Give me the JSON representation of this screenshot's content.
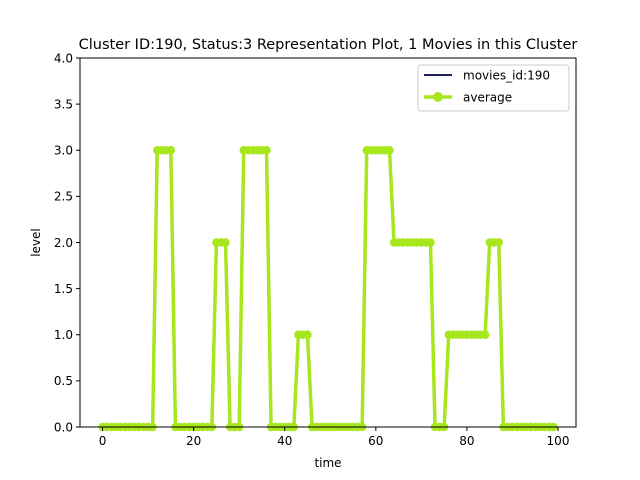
{
  "chart_data": {
    "type": "line",
    "title": "Cluster ID:190, Status:3 Representation Plot, 1 Movies in this Cluster",
    "xlabel": "time",
    "ylabel": "level",
    "xlim": [
      -4.95,
      103.95
    ],
    "ylim": [
      0,
      4.0
    ],
    "xticks": [
      0,
      20,
      40,
      60,
      80,
      100
    ],
    "xtick_labels": [
      "0",
      "20",
      "40",
      "60",
      "80",
      "100"
    ],
    "yticks": [
      0.0,
      0.5,
      1.0,
      1.5,
      2.0,
      2.5,
      3.0,
      3.5,
      4.0
    ],
    "ytick_labels": [
      "0.0",
      "0.5",
      "1.0",
      "1.5",
      "2.0",
      "2.5",
      "3.0",
      "3.5",
      "4.0"
    ],
    "grid": false,
    "legend_position": "top-right",
    "x": [
      0,
      1,
      2,
      3,
      4,
      5,
      6,
      7,
      8,
      9,
      10,
      11,
      12,
      13,
      14,
      15,
      16,
      17,
      18,
      19,
      20,
      21,
      22,
      23,
      24,
      25,
      26,
      27,
      28,
      29,
      30,
      31,
      32,
      33,
      34,
      35,
      36,
      37,
      38,
      39,
      40,
      41,
      42,
      43,
      44,
      45,
      46,
      47,
      48,
      49,
      50,
      51,
      52,
      53,
      54,
      55,
      56,
      57,
      58,
      59,
      60,
      61,
      62,
      63,
      64,
      65,
      66,
      67,
      68,
      69,
      70,
      71,
      72,
      73,
      74,
      75,
      76,
      77,
      78,
      79,
      80,
      81,
      82,
      83,
      84,
      85,
      86,
      87,
      88,
      89,
      90,
      91,
      92,
      93,
      94,
      95,
      96,
      97,
      98,
      99
    ],
    "series": [
      {
        "name": "movies_id:190",
        "color": "#1a1f5e",
        "style": "line",
        "values": [
          0,
          0,
          0,
          0,
          0,
          0,
          0,
          0,
          0,
          0,
          0,
          0,
          3,
          3,
          3,
          3,
          0,
          0,
          0,
          0,
          0,
          0,
          0,
          0,
          0,
          2,
          2,
          2,
          0,
          0,
          0,
          3,
          3,
          3,
          3,
          3,
          3,
          0,
          0,
          0,
          0,
          0,
          0,
          1,
          1,
          1,
          0,
          0,
          0,
          0,
          0,
          0,
          0,
          0,
          0,
          0,
          0,
          0,
          3,
          3,
          3,
          3,
          3,
          3,
          2,
          2,
          2,
          2,
          2,
          2,
          2,
          2,
          2,
          0,
          0,
          0,
          1,
          1,
          1,
          1,
          1,
          1,
          1,
          1,
          1,
          2,
          2,
          2,
          0,
          0,
          0,
          0,
          0,
          0,
          0,
          0,
          0,
          0,
          0,
          0
        ]
      },
      {
        "name": "average",
        "color": "#a8e61d",
        "style": "line-marker",
        "values": [
          0,
          0,
          0,
          0,
          0,
          0,
          0,
          0,
          0,
          0,
          0,
          0,
          3,
          3,
          3,
          3,
          0,
          0,
          0,
          0,
          0,
          0,
          0,
          0,
          0,
          2,
          2,
          2,
          0,
          0,
          0,
          3,
          3,
          3,
          3,
          3,
          3,
          0,
          0,
          0,
          0,
          0,
          0,
          1,
          1,
          1,
          0,
          0,
          0,
          0,
          0,
          0,
          0,
          0,
          0,
          0,
          0,
          0,
          3,
          3,
          3,
          3,
          3,
          3,
          2,
          2,
          2,
          2,
          2,
          2,
          2,
          2,
          2,
          0,
          0,
          0,
          1,
          1,
          1,
          1,
          1,
          1,
          1,
          1,
          1,
          2,
          2,
          2,
          0,
          0,
          0,
          0,
          0,
          0,
          0,
          0,
          0,
          0,
          0,
          0
        ]
      }
    ]
  }
}
